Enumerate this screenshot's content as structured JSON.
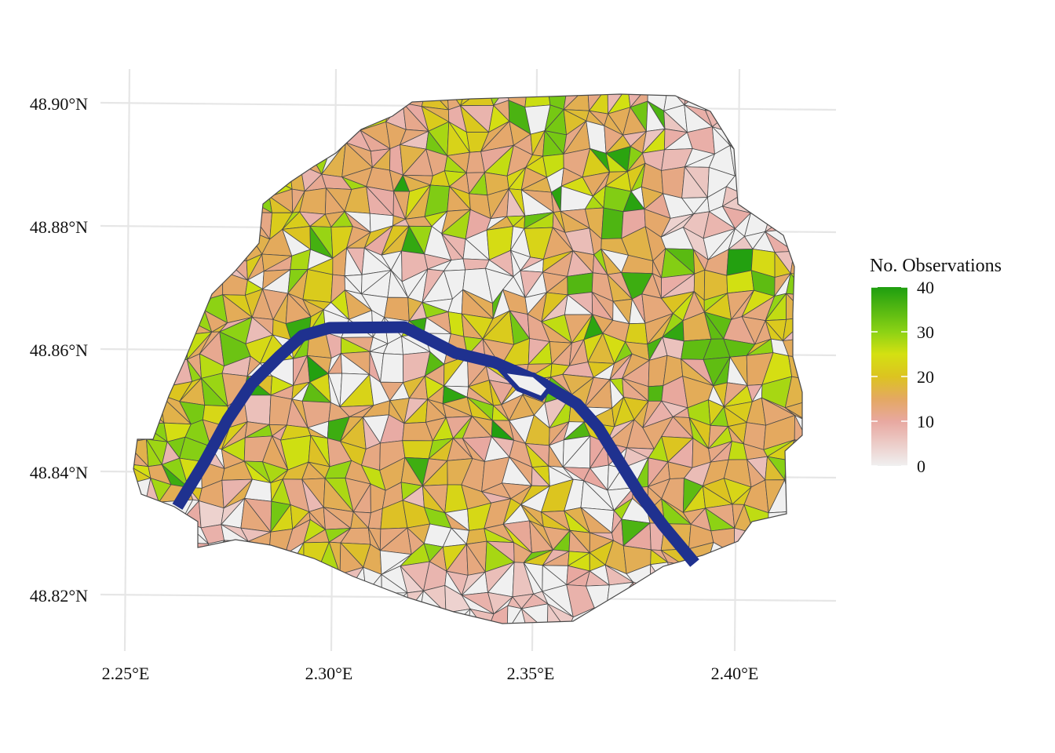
{
  "map": {
    "x_ticks": [
      "2.25°E",
      "2.30°E",
      "2.35°E",
      "2.40°E"
    ],
    "y_ticks": [
      "48.90°N",
      "48.88°N",
      "48.86°N",
      "48.84°N",
      "48.82°N"
    ],
    "x_tick_values": [
      2.25,
      2.3,
      2.35,
      2.4
    ],
    "y_tick_values": [
      48.9,
      48.88,
      48.86,
      48.84,
      48.82
    ],
    "longitude_range": [
      2.245,
      2.425
    ],
    "latitude_range": [
      48.812,
      48.906
    ],
    "fill_variable": "No. Observations",
    "river": "Seine",
    "grid": true
  },
  "legend": {
    "title": "No. Observations",
    "labels": [
      "40",
      "30",
      "20",
      "10",
      "0"
    ],
    "values": [
      40,
      30,
      20,
      10,
      0
    ],
    "range": [
      0,
      40
    ],
    "placement": "right",
    "color_stops": [
      {
        "value": 0,
        "color": "#f0f0f0"
      },
      {
        "value": 10,
        "color": "#e8a8a0"
      },
      {
        "value": 15,
        "color": "#e4a862"
      },
      {
        "value": 20,
        "color": "#dcc420"
      },
      {
        "value": 25,
        "color": "#d4e012"
      },
      {
        "value": 30,
        "color": "#8cd214"
      },
      {
        "value": 40,
        "color": "#1e9e10"
      }
    ]
  },
  "colors": {
    "river": "#1f318f",
    "grid": "#e6e6e6",
    "outline": "#4a4a4a",
    "no_data": "#f0f0f0"
  }
}
